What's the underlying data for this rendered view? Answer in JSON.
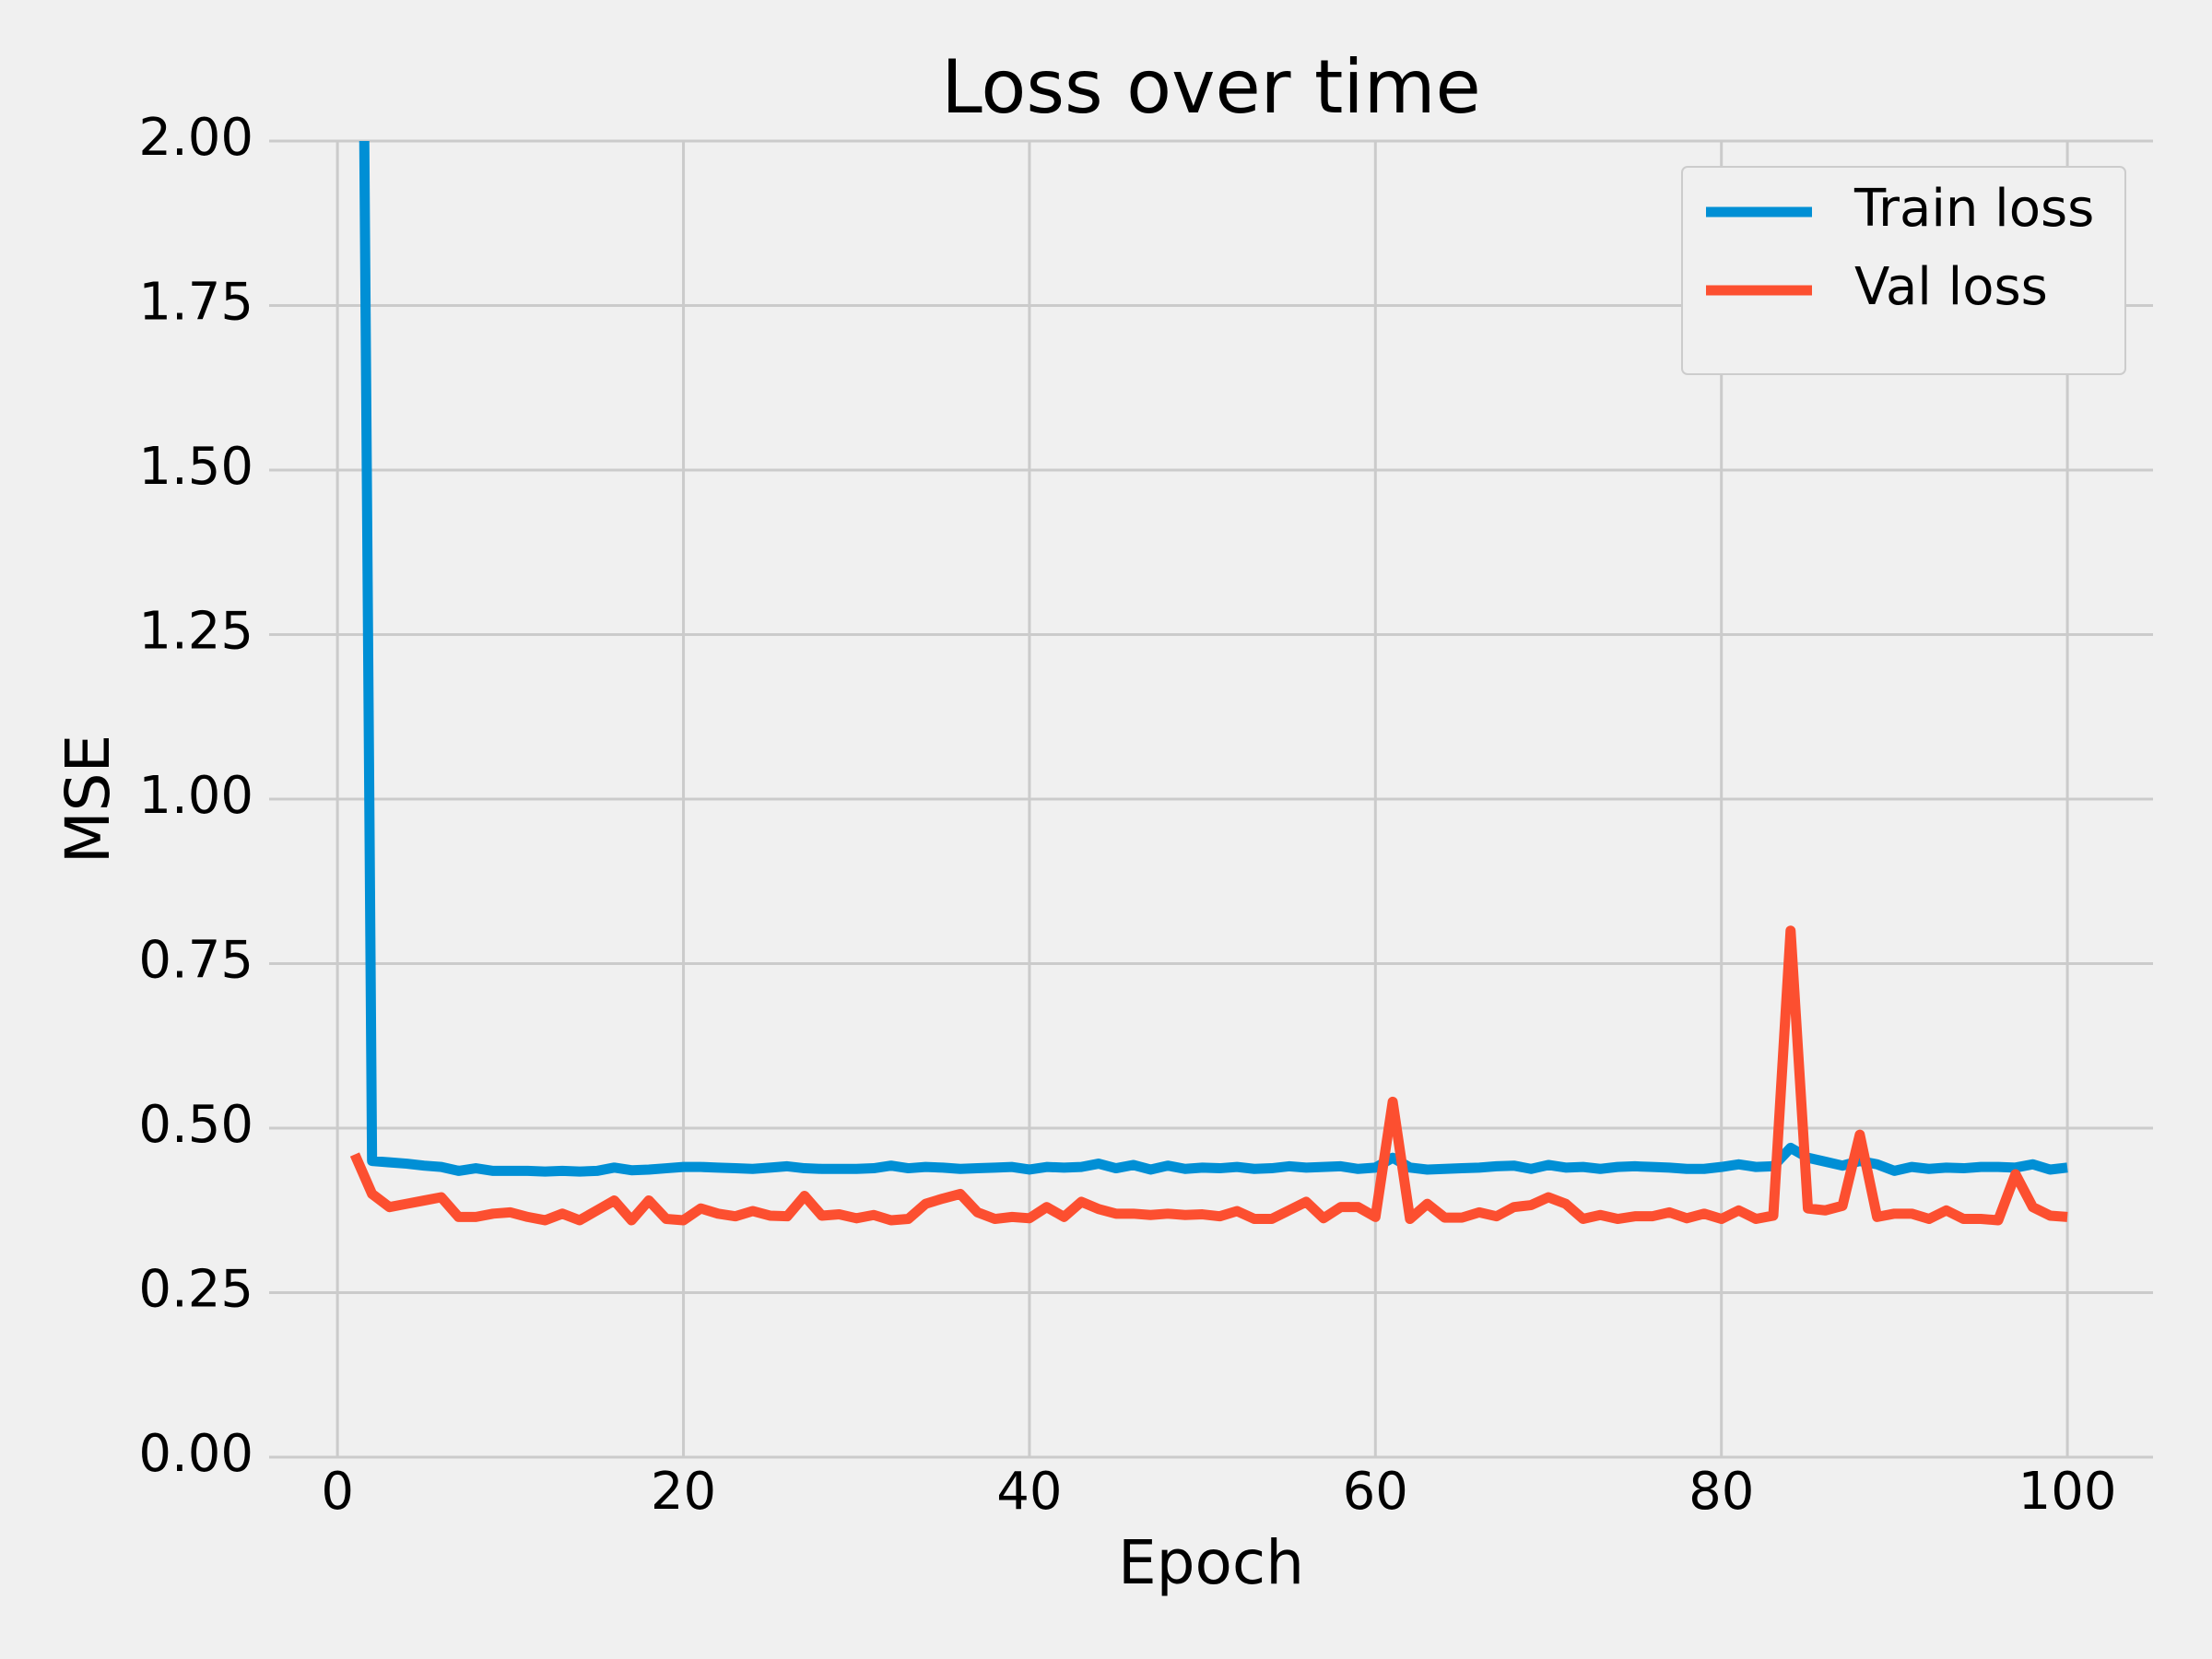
{
  "chart_data": {
    "type": "line",
    "title": "Loss over time",
    "x_label": "Epoch",
    "y_label": "MSE",
    "x": [
      1,
      2,
      3,
      4,
      5,
      6,
      7,
      8,
      9,
      10,
      11,
      12,
      13,
      14,
      15,
      16,
      17,
      18,
      19,
      20,
      21,
      22,
      23,
      24,
      25,
      26,
      27,
      28,
      29,
      30,
      31,
      32,
      33,
      34,
      35,
      36,
      37,
      38,
      39,
      40,
      41,
      42,
      43,
      44,
      45,
      46,
      47,
      48,
      49,
      50,
      51,
      52,
      53,
      54,
      55,
      56,
      57,
      58,
      59,
      60,
      61,
      62,
      63,
      64,
      65,
      66,
      67,
      68,
      69,
      70,
      71,
      72,
      73,
      74,
      75,
      76,
      77,
      78,
      79,
      80,
      81,
      82,
      83,
      84,
      85,
      86,
      87,
      88,
      89,
      90,
      91,
      92,
      93,
      94,
      95,
      96,
      97,
      98,
      99,
      100
    ],
    "series": [
      {
        "name": "Train loss",
        "color": "#008fd5",
        "values": [
          3.9,
          0.45,
          0.448,
          0.446,
          0.443,
          0.441,
          0.435,
          0.439,
          0.435,
          0.435,
          0.435,
          0.434,
          0.435,
          0.434,
          0.435,
          0.44,
          0.436,
          0.437,
          0.439,
          0.441,
          0.441,
          0.44,
          0.439,
          0.438,
          0.44,
          0.442,
          0.439,
          0.438,
          0.438,
          0.438,
          0.439,
          0.443,
          0.439,
          0.441,
          0.44,
          0.438,
          0.439,
          0.44,
          0.441,
          0.437,
          0.441,
          0.44,
          0.441,
          0.446,
          0.439,
          0.444,
          0.437,
          0.443,
          0.438,
          0.44,
          0.439,
          0.441,
          0.438,
          0.439,
          0.442,
          0.44,
          0.441,
          0.442,
          0.438,
          0.44,
          0.455,
          0.44,
          0.437,
          0.438,
          0.439,
          0.44,
          0.442,
          0.443,
          0.438,
          0.444,
          0.44,
          0.441,
          0.438,
          0.441,
          0.442,
          0.441,
          0.44,
          0.438,
          0.438,
          0.441,
          0.445,
          0.441,
          0.442,
          0.47,
          0.455,
          0.449,
          0.443,
          0.45,
          0.445,
          0.435,
          0.441,
          0.438,
          0.44,
          0.439,
          0.441,
          0.441,
          0.44,
          0.445,
          0.437,
          0.44
        ]
      },
      {
        "name": "Val loss",
        "color": "#fc4f30",
        "values": [
          0.46,
          0.4,
          0.38,
          0.385,
          0.39,
          0.395,
          0.365,
          0.365,
          0.37,
          0.372,
          0.365,
          0.36,
          0.37,
          0.36,
          0.375,
          0.39,
          0.36,
          0.39,
          0.362,
          0.36,
          0.378,
          0.37,
          0.366,
          0.374,
          0.367,
          0.366,
          0.397,
          0.367,
          0.369,
          0.363,
          0.368,
          0.36,
          0.362,
          0.385,
          0.393,
          0.4,
          0.372,
          0.362,
          0.365,
          0.363,
          0.38,
          0.365,
          0.388,
          0.377,
          0.37,
          0.37,
          0.368,
          0.37,
          0.368,
          0.369,
          0.366,
          0.374,
          0.362,
          0.362,
          0.375,
          0.388,
          0.363,
          0.38,
          0.38,
          0.365,
          0.54,
          0.362,
          0.385,
          0.364,
          0.364,
          0.372,
          0.366,
          0.38,
          0.383,
          0.395,
          0.385,
          0.362,
          0.368,
          0.362,
          0.366,
          0.366,
          0.372,
          0.363,
          0.37,
          0.362,
          0.375,
          0.362,
          0.367,
          0.8,
          0.378,
          0.375,
          0.382,
          0.49,
          0.365,
          0.37,
          0.37,
          0.362,
          0.375,
          0.362,
          0.362,
          0.36,
          0.43,
          0.38,
          0.367,
          0.365
        ]
      }
    ],
    "xlim": [
      -3.95,
      104.95
    ],
    "xticks": [
      0,
      20,
      40,
      60,
      80,
      100
    ],
    "ylim": [
      0,
      2
    ],
    "yticks": [
      {
        "value": 0,
        "label": "0.00"
      },
      {
        "value": 0.25,
        "label": "0.25"
      },
      {
        "value": 0.5,
        "label": "0.50"
      },
      {
        "value": 0.75,
        "label": "0.75"
      },
      {
        "value": 1,
        "label": "1.00"
      },
      {
        "value": 1.25,
        "label": "1.25"
      },
      {
        "value": 1.5,
        "label": "1.50"
      },
      {
        "value": 1.75,
        "label": "1.75"
      },
      {
        "value": 2,
        "label": "2.00"
      }
    ],
    "grid": true,
    "legend": "upper right"
  }
}
